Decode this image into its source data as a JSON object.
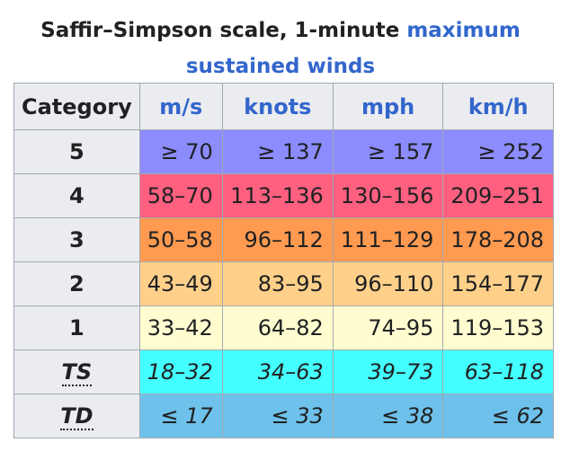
{
  "caption": {
    "prefix": "Saffir–Simpson scale, 1-minute ",
    "link_line1": "maximum",
    "link_line2": "sustained winds"
  },
  "table": {
    "headers": [
      "Category",
      "m/s",
      "knots",
      "mph",
      "km/h"
    ],
    "rows": [
      {
        "category": "5",
        "ms": "≥ 70",
        "knots": "≥ 137",
        "mph": "≥ 157",
        "kmh": "≥ 252",
        "color": "#8c8cff"
      },
      {
        "category": "4",
        "ms": "58–70",
        "knots": "113–136",
        "mph": "130–156",
        "kmh": "209–251",
        "color": "#ff6080"
      },
      {
        "category": "3",
        "ms": "50–58",
        "knots": "96–112",
        "mph": "111–129",
        "kmh": "178–208",
        "color": "#ff9a50"
      },
      {
        "category": "2",
        "ms": "43–49",
        "knots": "83–95",
        "mph": "96–110",
        "kmh": "154–177",
        "color": "#ffd08a"
      },
      {
        "category": "1",
        "ms": "33–42",
        "knots": "64–82",
        "mph": "74–95",
        "kmh": "119–153",
        "color": "#fffcd0"
      },
      {
        "category": "TS",
        "ms": "18–32",
        "knots": "34–63",
        "mph": "39–73",
        "kmh": "63–118",
        "color": "#44ffff"
      },
      {
        "category": "TD",
        "ms": "≤ 17",
        "knots": "≤ 33",
        "mph": "≤ 38",
        "kmh": "≤ 62",
        "color": "#6ec1ea"
      }
    ]
  }
}
